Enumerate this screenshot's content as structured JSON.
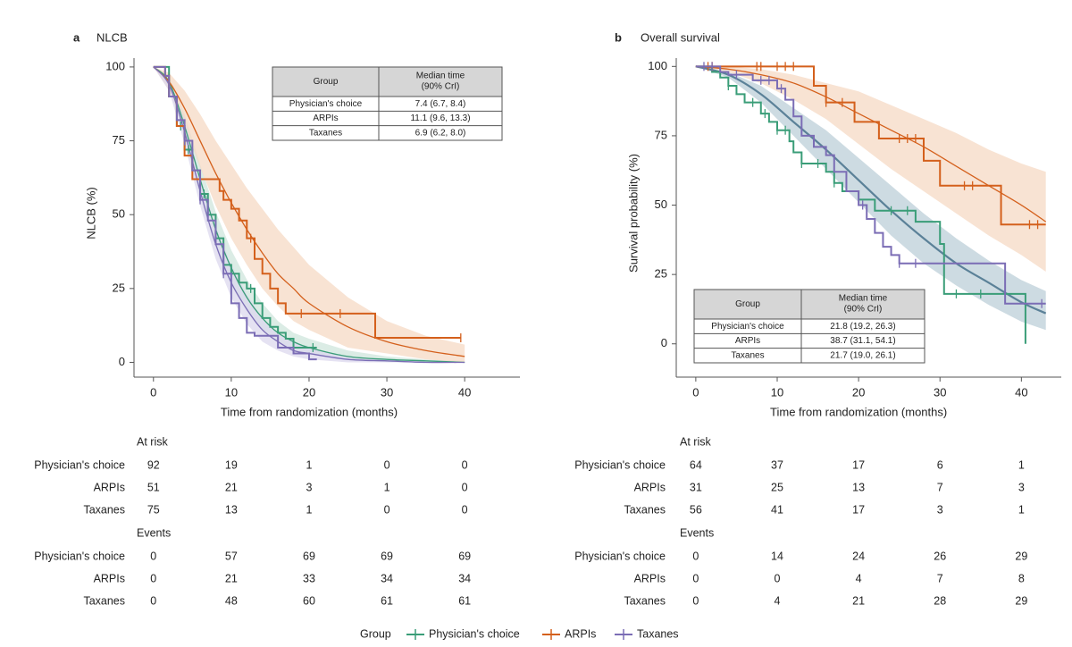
{
  "legend": {
    "title": "Group"
  },
  "chart_data": [
    {
      "type": "survival",
      "panel_label": "a",
      "title": "NLCB",
      "x_label": "Time from randomization (months)",
      "y_label": "NLCB (%)",
      "xlim": [
        -2.5,
        47.1
      ],
      "ylim": [
        -5,
        103
      ],
      "xticks": [
        0,
        10,
        20,
        30,
        40
      ],
      "yticks": [
        0,
        25,
        50,
        75,
        100
      ],
      "fit_x": [
        0,
        2,
        4,
        6,
        8,
        10,
        12,
        14,
        16,
        18,
        20,
        25,
        30,
        35,
        40
      ],
      "series": [
        {
          "name": "Physician's choice",
          "color": "#3a9d78",
          "band_color": "#cfe6dc",
          "x": [
            0,
            2,
            3,
            4,
            5,
            6,
            7,
            8,
            9,
            10,
            11,
            12,
            13,
            14,
            15,
            16,
            17,
            18,
            21
          ],
          "values": [
            100,
            90,
            80,
            72,
            65,
            57,
            50,
            42,
            33,
            30,
            27,
            25,
            20,
            15,
            12,
            10,
            8,
            5,
            5
          ],
          "censored": [
            3.5,
            4.5,
            5,
            6.5,
            8,
            12.5,
            20.5
          ],
          "fit": [
            100,
            95,
            80,
            62,
            45,
            32,
            22,
            15,
            10,
            7,
            5,
            2,
            1,
            0.5,
            0
          ],
          "band_lower": [
            100,
            93,
            76,
            56,
            39,
            26,
            17,
            11,
            7,
            4,
            3,
            1,
            0,
            0,
            0
          ],
          "band_upper": [
            100,
            97,
            84,
            67,
            51,
            38,
            28,
            20,
            14,
            10,
            8,
            4,
            2,
            1,
            0.5
          ]
        },
        {
          "name": "ARPIs",
          "color": "#d4601c",
          "band_color": "#f6d9c4",
          "x": [
            0,
            1.5,
            2,
            3,
            4,
            5,
            8.5,
            9,
            10,
            11,
            12,
            13,
            14,
            15,
            16,
            17,
            28.5,
            39.5
          ],
          "values": [
            100,
            97,
            90,
            80,
            70,
            62,
            58,
            55,
            52,
            48,
            42,
            35,
            30,
            25,
            20,
            16.5,
            8.3,
            8.3
          ],
          "censored": [
            12.5,
            19,
            24,
            39.5
          ],
          "fit": [
            100,
            95,
            86,
            75,
            64,
            54,
            45,
            37,
            30,
            25,
            20,
            12,
            7,
            4,
            2
          ],
          "band_lower": [
            100,
            92,
            80,
            66,
            53,
            42,
            33,
            25,
            19,
            14,
            11,
            5,
            3,
            1,
            0
          ],
          "band_upper": [
            100,
            98,
            92,
            84,
            75,
            67,
            59,
            52,
            45,
            39,
            33,
            22,
            14,
            9,
            6
          ]
        },
        {
          "name": "Taxanes",
          "color": "#7b6db5",
          "band_color": "#dcd8ee",
          "x": [
            0,
            1.5,
            2,
            3,
            4,
            5,
            6,
            7,
            8,
            9,
            10,
            11,
            12,
            13,
            16,
            18,
            20,
            21
          ],
          "values": [
            100,
            97,
            90,
            82,
            75,
            65,
            55,
            48,
            40,
            30,
            20,
            15,
            10,
            9,
            5,
            3,
            1,
            1
          ],
          "censored": [
            4,
            6,
            9
          ],
          "fit": [
            100,
            94,
            78,
            58,
            40,
            27,
            18,
            11,
            7,
            4,
            3,
            1,
            0.5,
            0,
            0
          ],
          "band_lower": [
            100,
            92,
            74,
            53,
            35,
            22,
            13,
            7,
            4,
            2,
            1,
            0,
            0,
            0,
            0
          ],
          "band_upper": [
            100,
            96,
            82,
            63,
            46,
            33,
            23,
            15,
            10,
            7,
            5,
            2,
            1,
            0.5,
            0
          ]
        }
      ],
      "median_table": {
        "columns": [
          "Group",
          [
            "Median time",
            "(90% CrI)"
          ]
        ],
        "rows": [
          [
            "Physician's choice",
            "7.4 (6.7, 8.4)"
          ],
          [
            "ARPIs",
            "11.1 (9.6, 13.3)"
          ],
          [
            "Taxanes",
            "6.9 (6.2, 8.0)"
          ]
        ]
      },
      "at_risk": {
        "title": "At risk",
        "rows": [
          {
            "name": "Physician's choice",
            "values": [
              92,
              19,
              1,
              0,
              0
            ]
          },
          {
            "name": "ARPIs",
            "values": [
              51,
              21,
              3,
              1,
              0
            ]
          },
          {
            "name": "Taxanes",
            "values": [
              75,
              13,
              1,
              0,
              0
            ]
          }
        ]
      },
      "events": {
        "title": "Events",
        "rows": [
          {
            "name": "Physician's choice",
            "values": [
              0,
              57,
              69,
              69,
              69
            ]
          },
          {
            "name": "ARPIs",
            "values": [
              0,
              21,
              33,
              34,
              34
            ]
          },
          {
            "name": "Taxanes",
            "values": [
              0,
              48,
              60,
              61,
              61
            ]
          }
        ]
      }
    },
    {
      "type": "survival",
      "panel_label": "b",
      "title": "Overall survival",
      "x_label": "Time from randomization (months)",
      "y_label": "Survival probability (%)",
      "xlim": [
        -2.4,
        44.9
      ],
      "ylim": [
        -12,
        103
      ],
      "xticks": [
        0,
        10,
        20,
        30,
        40
      ],
      "yticks": [
        0,
        25,
        50,
        75,
        100
      ],
      "fit_x": [
        0,
        4,
        8,
        12,
        16,
        20,
        24,
        28,
        32,
        36,
        40,
        43
      ],
      "series": [
        {
          "name": "Physician's choice",
          "color": "#3a9d78",
          "band_color": "#bccfd8",
          "fit_color": "#5b8198",
          "x": [
            0,
            2,
            3,
            4,
            5,
            6,
            8,
            9,
            10,
            11.5,
            12,
            13,
            16,
            17,
            18,
            20,
            22,
            27,
            30,
            30.5,
            40.5
          ],
          "values": [
            100,
            98,
            96,
            93,
            90,
            87,
            83,
            80,
            77,
            73,
            69,
            65,
            62,
            58,
            55,
            52,
            48,
            44,
            36,
            18,
            0
          ],
          "censored": [
            4,
            7,
            8.5,
            10,
            11,
            13,
            15,
            17,
            24,
            26,
            32,
            35
          ],
          "fit": [
            100,
            97,
            90,
            80,
            70,
            59,
            48,
            38,
            29,
            22,
            15,
            11
          ],
          "band_lower": [
            100,
            96,
            87,
            75,
            63,
            51,
            39,
            29,
            21,
            14,
            8,
            5
          ],
          "band_upper": [
            100,
            98,
            93,
            85,
            77,
            67,
            57,
            47,
            38,
            30,
            23,
            19
          ]
        },
        {
          "name": "ARPIs",
          "color": "#d4601c",
          "band_color": "#f6d9c4",
          "x": [
            0,
            14.5,
            16,
            19.5,
            22.5,
            28,
            30,
            37.5,
            43
          ],
          "values": [
            100,
            93,
            87,
            80,
            74,
            66,
            57,
            43,
            43
          ],
          "censored": [
            1.5,
            2,
            7.5,
            8,
            10,
            11,
            12,
            16,
            18,
            25,
            26,
            27,
            33,
            34,
            41,
            42
          ],
          "fit": [
            100,
            99,
            97,
            94,
            89,
            83,
            77,
            71,
            64,
            57,
            50,
            44
          ],
          "band_lower": [
            100,
            98,
            94,
            88,
            81,
            72,
            63,
            55,
            47,
            39,
            32,
            26
          ],
          "band_upper": [
            100,
            100,
            99,
            97,
            94,
            91,
            86,
            81,
            76,
            70,
            65,
            62
          ]
        },
        {
          "name": "Taxanes",
          "color": "#7b6db5",
          "x": [
            0,
            3,
            4,
            7,
            10,
            11,
            12,
            13,
            14.5,
            16,
            17,
            18.5,
            20,
            21,
            22,
            23,
            24,
            25,
            38,
            43
          ],
          "values": [
            100,
            98,
            97,
            95,
            92,
            88,
            82,
            75,
            71,
            68,
            62,
            55,
            50,
            45,
            40,
            35,
            32,
            29,
            14.5,
            14.5
          ],
          "censored": [
            1,
            2,
            5,
            8,
            9,
            10.5,
            20.5,
            25,
            27,
            42.5
          ]
        }
      ],
      "median_table": {
        "columns": [
          "Group",
          [
            "Median time",
            "(90% CrI)"
          ]
        ],
        "rows": [
          [
            "Physician's choice",
            "21.8 (19.2, 26.3)"
          ],
          [
            "ARPIs",
            "38.7 (31.1, 54.1)"
          ],
          [
            "Taxanes",
            "21.7 (19.0, 26.1)"
          ]
        ]
      },
      "at_risk": {
        "title": "At risk",
        "rows": [
          {
            "name": "Physician's choice",
            "values": [
              64,
              37,
              17,
              6,
              1
            ]
          },
          {
            "name": "ARPIs",
            "values": [
              31,
              25,
              13,
              7,
              3
            ]
          },
          {
            "name": "Taxanes",
            "values": [
              56,
              41,
              17,
              3,
              1
            ]
          }
        ]
      },
      "events": {
        "title": "Events",
        "rows": [
          {
            "name": "Physician's choice",
            "values": [
              0,
              14,
              24,
              26,
              29
            ]
          },
          {
            "name": "ARPIs",
            "values": [
              0,
              0,
              4,
              7,
              8
            ]
          },
          {
            "name": "Taxanes",
            "values": [
              0,
              4,
              21,
              28,
              29
            ]
          }
        ]
      }
    }
  ]
}
